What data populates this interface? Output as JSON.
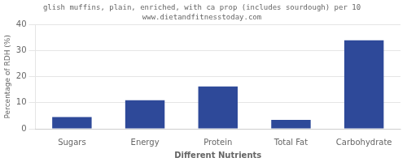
{
  "chart_data": {
    "type": "bar",
    "title": "glish muffins, plain, enriched, with ca prop (includes sourdough) per 10",
    "subtitle": "www.dietandfitnesstoday.com",
    "categories": [
      "Sugars",
      "Energy",
      "Protein",
      "Total Fat",
      "Carbohydrate"
    ],
    "values": [
      4.5,
      11.0,
      16.3,
      3.4,
      34.0
    ],
    "color": "#2e4999",
    "xlabel": "Different Nutrients",
    "ylabel": "Percentage of RDH (%)",
    "ylim": [
      0,
      40
    ],
    "yticks": [
      0,
      10,
      20,
      30,
      40
    ],
    "grid": true
  }
}
